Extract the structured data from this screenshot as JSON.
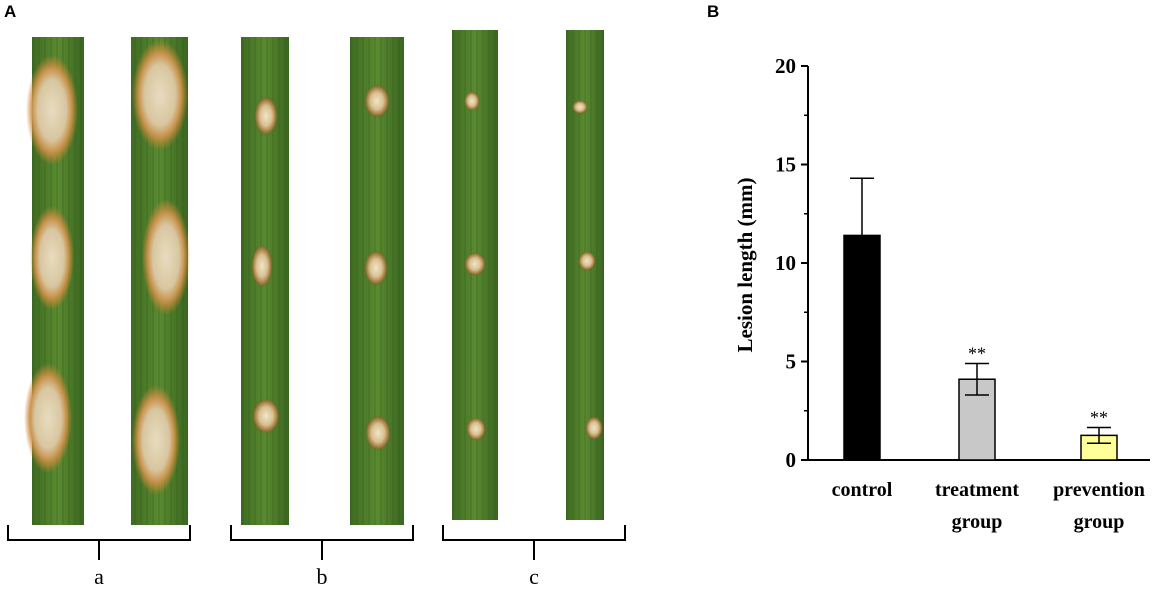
{
  "panels": {
    "a_label": "A",
    "b_label": "B"
  },
  "photo_groups": [
    {
      "label": "a"
    },
    {
      "label": "b"
    },
    {
      "label": "c"
    }
  ],
  "chart_data": {
    "type": "bar",
    "title": "",
    "xlabel": "",
    "ylabel": "Lesion length (mm)",
    "ylim": [
      0,
      20
    ],
    "yticks": [
      0,
      5,
      10,
      15,
      20
    ],
    "categories": [
      "control",
      "treatment group",
      "prevention group"
    ],
    "category_lines": [
      [
        "control"
      ],
      [
        "treatment",
        "group"
      ],
      [
        "prevention",
        "group"
      ]
    ],
    "values": [
      11.4,
      4.1,
      1.25
    ],
    "errors": [
      2.9,
      0.8,
      0.4
    ],
    "annotations": [
      "",
      "**",
      "**"
    ],
    "colors": [
      "#000000",
      "#c8c8c8",
      "#ffff99"
    ]
  }
}
